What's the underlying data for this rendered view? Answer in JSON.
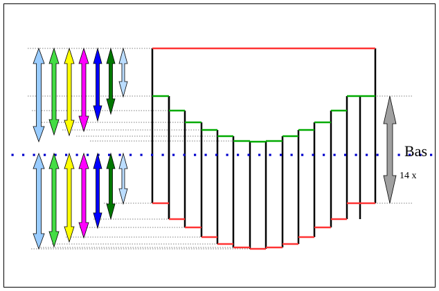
{
  "labels": {
    "main": "Bas",
    "sub": "14 x"
  },
  "colors": {
    "frame": "#000000",
    "top_edge": "#ff3333",
    "upper_step": "#00aa00",
    "lower_step": "#ff3333",
    "wall": "#000000",
    "midline_dots": "#0000cc",
    "guide_lines": "#000000",
    "range_arrow": "#a0a0a0"
  },
  "arrows": {
    "colors": [
      "#99ccff",
      "#44dd44",
      "#ffff00",
      "#ff00ff",
      "#0000ff",
      "#007700",
      "#bbddff"
    ],
    "icon_names": [
      "light-blue-arrow-icon",
      "green-arrow-icon",
      "yellow-arrow-icon",
      "magenta-arrow-icon",
      "blue-arrow-icon",
      "dark-green-arrow-icon",
      "pale-blue-arrow-icon"
    ]
  }
}
